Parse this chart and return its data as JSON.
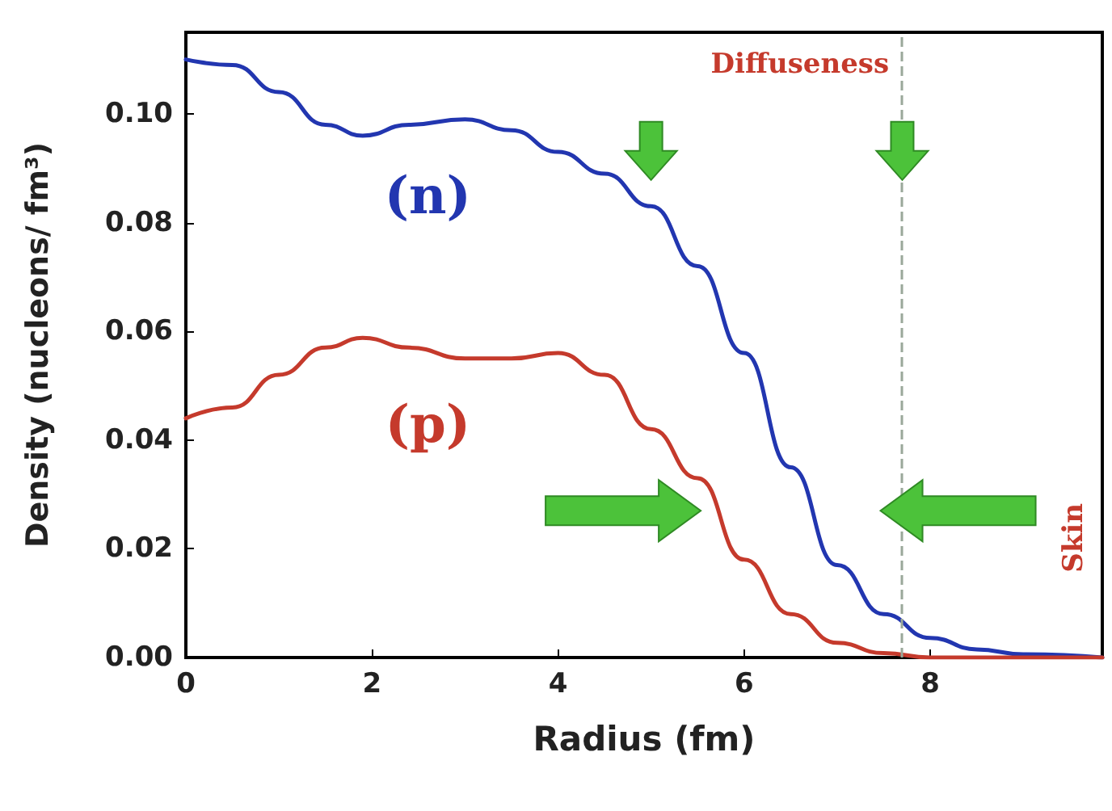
{
  "chart_data": {
    "type": "line",
    "xlabel": "Radius (fm)",
    "ylabel": "Density (nucleons/ fm³)",
    "xlim": [
      0,
      9.85
    ],
    "xticks": [
      0,
      2,
      4,
      6,
      8
    ],
    "ylim": [
      0,
      0.115
    ],
    "yticks": [
      {
        "value": 0,
        "label": "0.00"
      },
      {
        "value": 0.02,
        "label": "0.02"
      },
      {
        "value": 0.04,
        "label": "0.04"
      },
      {
        "value": 0.06,
        "label": "0.06"
      },
      {
        "value": 0.08,
        "label": "0.08"
      },
      {
        "value": 0.1,
        "label": "0.10"
      }
    ],
    "grid": false,
    "marker": "none",
    "line_style": "solid",
    "series": [
      {
        "name": "(n)",
        "color": "#2236b0",
        "x": [
          0,
          0.5,
          1,
          1.5,
          1.9,
          2.4,
          3,
          3.5,
          4,
          4.5,
          5,
          5.5,
          6,
          6.5,
          7,
          7.5,
          8,
          8.5,
          9,
          9.85
        ],
        "values": [
          0.11,
          0.109,
          0.104,
          0.098,
          0.096,
          0.098,
          0.099,
          0.097,
          0.093,
          0.089,
          0.083,
          0.072,
          0.056,
          0.035,
          0.017,
          0.008,
          0.0036,
          0.0015,
          0.0006,
          0
        ]
      },
      {
        "name": "(p)",
        "color": "#c53a2c",
        "x": [
          0,
          0.5,
          1,
          1.5,
          1.9,
          2.4,
          3,
          3.5,
          4,
          4.5,
          5,
          5.5,
          6,
          6.5,
          7,
          7.5,
          8,
          9.85
        ],
        "values": [
          0.044,
          0.046,
          0.052,
          0.057,
          0.0588,
          0.057,
          0.055,
          0.055,
          0.056,
          0.052,
          0.042,
          0.033,
          0.018,
          0.008,
          0.0027,
          0.0008,
          0,
          0
        ]
      }
    ],
    "ref_lines": [
      {
        "axis": "x",
        "value": 7.7,
        "color": "#9aa89a",
        "line_style": "dashed"
      }
    ],
    "annotations": [
      "Diffuseness",
      "Skin"
    ]
  }
}
